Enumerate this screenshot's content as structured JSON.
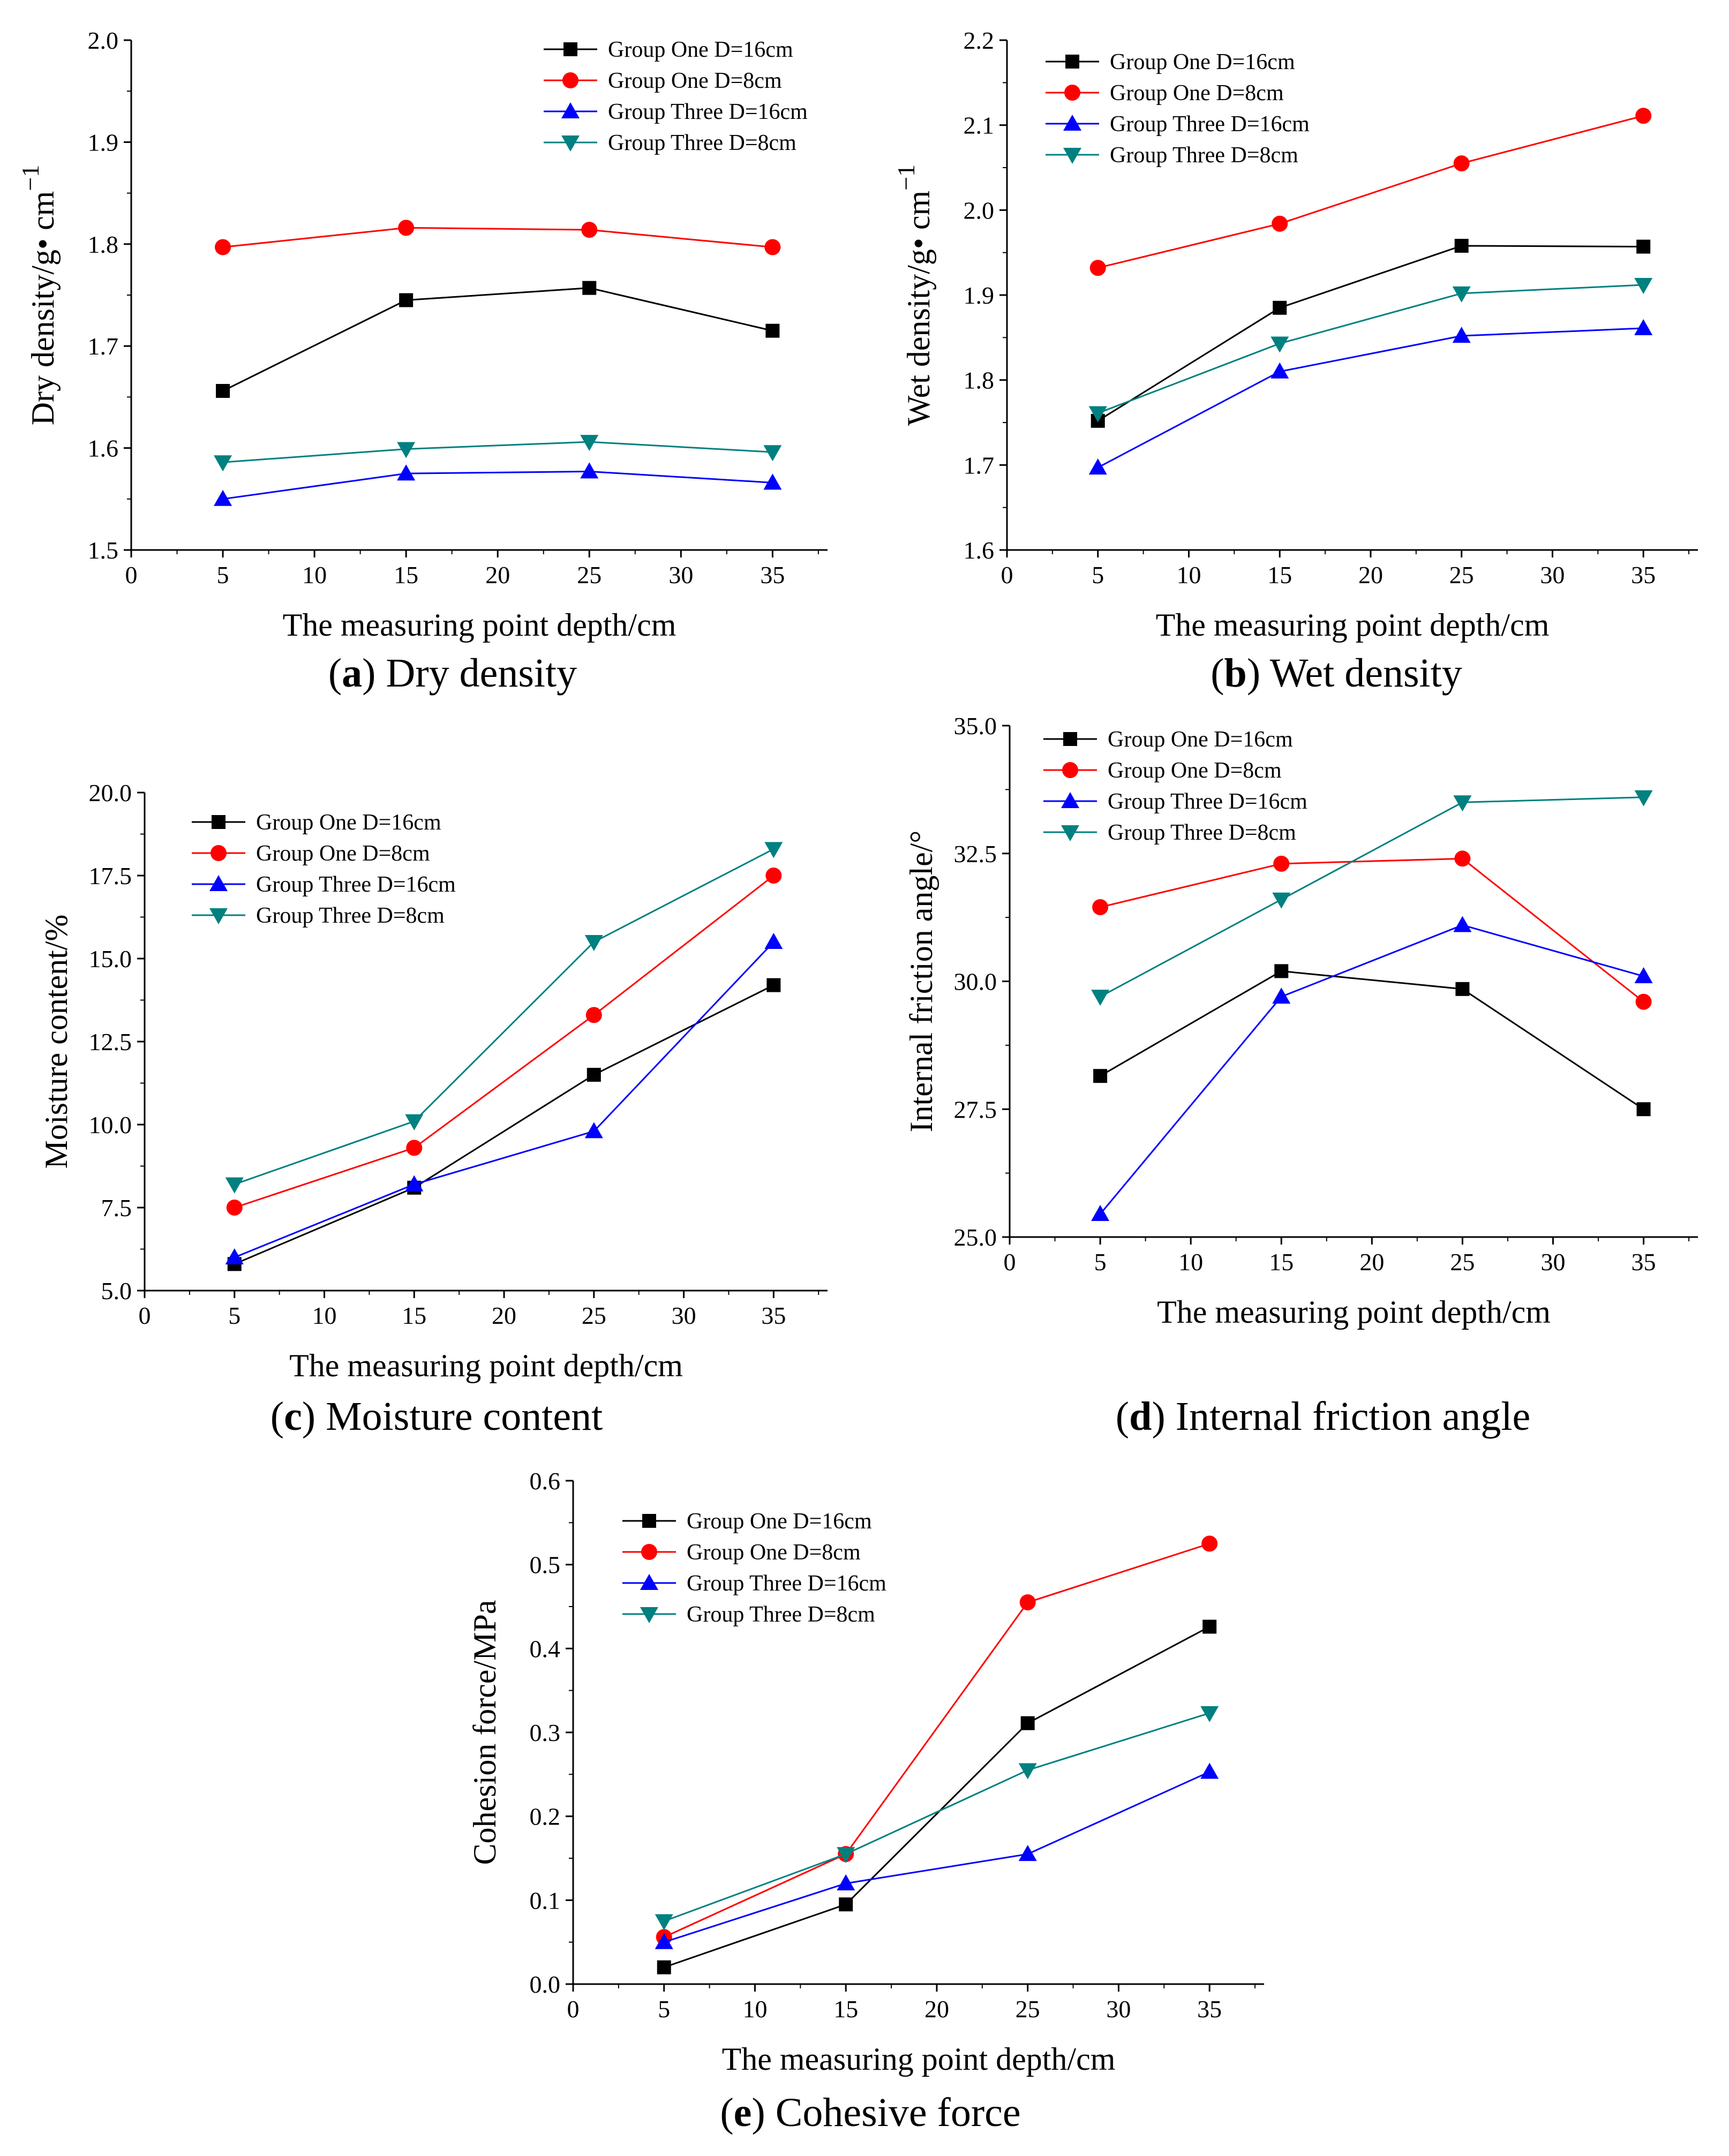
{
  "chart_data": [
    {
      "id": "a",
      "type": "line",
      "caption_letter": "a",
      "caption_text": " Dry density",
      "caption_open": "(",
      "caption_close": ")",
      "xlabel": "The measuring point depth/cm",
      "ylabel": "Dry density/g•  cm",
      "ylabel_sup": "−1",
      "xlim": [
        0,
        38
      ],
      "ylim": [
        1.5,
        2.0
      ],
      "xticks": [
        0,
        5,
        10,
        15,
        20,
        25,
        30,
        35
      ],
      "yticks": [
        1.5,
        1.6,
        1.7,
        1.8,
        1.9,
        2.0
      ],
      "ytick_labels": [
        "1.5",
        "1.6",
        "1.7",
        "1.8",
        "1.9",
        "2.0"
      ],
      "x": [
        5,
        15,
        25,
        35
      ],
      "series": [
        {
          "name": "Group One D=16cm",
          "values": [
            1.656,
            1.745,
            1.757,
            1.715
          ]
        },
        {
          "name": "Group One D=8cm",
          "values": [
            1.797,
            1.816,
            1.814,
            1.797
          ]
        },
        {
          "name": "Group Three D=16cm",
          "values": [
            1.55,
            1.575,
            1.577,
            1.566
          ]
        },
        {
          "name": "Group Three D=8cm",
          "values": [
            1.586,
            1.599,
            1.606,
            1.596
          ]
        }
      ]
    },
    {
      "id": "b",
      "type": "line",
      "caption_letter": "b",
      "caption_text": " Wet density",
      "caption_open": "(",
      "caption_close": ")",
      "xlabel": "The measuring point depth/cm",
      "ylabel": "Wet density/g•  cm",
      "ylabel_sup": "−1",
      "xlim": [
        0,
        38
      ],
      "ylim": [
        1.6,
        2.2
      ],
      "xticks": [
        0,
        5,
        10,
        15,
        20,
        25,
        30,
        35
      ],
      "yticks": [
        1.6,
        1.7,
        1.8,
        1.9,
        2.0,
        2.1,
        2.2
      ],
      "ytick_labels": [
        "1.6",
        "1.7",
        "1.8",
        "1.9",
        "2.0",
        "2.1",
        "2.2"
      ],
      "x": [
        5,
        15,
        25,
        35
      ],
      "series": [
        {
          "name": "Group One D=16cm",
          "values": [
            1.752,
            1.885,
            1.958,
            1.957
          ]
        },
        {
          "name": "Group One D=8cm",
          "values": [
            1.932,
            1.984,
            2.055,
            2.111
          ]
        },
        {
          "name": "Group Three D=16cm",
          "values": [
            1.697,
            1.81,
            1.852,
            1.861
          ]
        },
        {
          "name": "Group Three D=8cm",
          "values": [
            1.761,
            1.843,
            1.902,
            1.912
          ]
        }
      ]
    },
    {
      "id": "c",
      "type": "line",
      "caption_letter": "c",
      "caption_text": " Moisture content",
      "caption_open": "(",
      "caption_close": ")",
      "xlabel": "The measuring point depth/cm",
      "ylabel": "Moisture content/%",
      "ylabel_sup": "",
      "xlim": [
        0,
        38
      ],
      "ylim": [
        5.0,
        20.0
      ],
      "xticks": [
        0,
        5,
        10,
        15,
        20,
        25,
        30,
        35
      ],
      "yticks": [
        5.0,
        7.5,
        10.0,
        12.5,
        15.0,
        17.5,
        20.0
      ],
      "ytick_labels": [
        "5.0",
        "7.5",
        "10.0",
        "12.5",
        "15.0",
        "17.5",
        "20.0"
      ],
      "x": [
        5,
        15,
        25,
        35
      ],
      "series": [
        {
          "name": "Group One D=16cm",
          "values": [
            5.8,
            8.1,
            11.5,
            14.2
          ]
        },
        {
          "name": "Group One D=8cm",
          "values": [
            7.5,
            9.3,
            13.3,
            17.5
          ]
        },
        {
          "name": "Group Three D=16cm",
          "values": [
            6.0,
            8.2,
            9.8,
            15.5
          ]
        },
        {
          "name": "Group Three D=8cm",
          "values": [
            8.2,
            10.1,
            15.5,
            18.3
          ]
        }
      ]
    },
    {
      "id": "d",
      "type": "line",
      "caption_letter": "d",
      "caption_text": " Internal friction angle",
      "caption_open": "(",
      "caption_close": ")",
      "xlabel": "The measuring point depth/cm",
      "ylabel": "Internal friction angle/°",
      "ylabel_sup": "",
      "xlim": [
        0,
        38
      ],
      "ylim": [
        25.0,
        35.0
      ],
      "xticks": [
        0,
        5,
        10,
        15,
        20,
        25,
        30,
        35
      ],
      "yticks": [
        25.0,
        27.5,
        30.0,
        32.5,
        35.0
      ],
      "ytick_labels": [
        "25.0",
        "27.5",
        "30.0",
        "32.5",
        "35.0"
      ],
      "x": [
        5,
        15,
        25,
        35
      ],
      "series": [
        {
          "name": "Group One D=16cm",
          "values": [
            28.15,
            30.2,
            29.85,
            27.5
          ]
        },
        {
          "name": "Group One D=8cm",
          "values": [
            31.45,
            32.3,
            32.4,
            29.6
          ]
        },
        {
          "name": "Group Three D=16cm",
          "values": [
            25.45,
            29.7,
            31.1,
            30.1
          ]
        },
        {
          "name": "Group Three D=8cm",
          "values": [
            29.7,
            31.6,
            33.5,
            33.6
          ]
        }
      ]
    },
    {
      "id": "e",
      "type": "line",
      "caption_letter": "e",
      "caption_text": " Cohesive force",
      "caption_open": "(",
      "caption_close": ")",
      "xlabel": "The measuring point depth/cm",
      "ylabel": "Cohesion force/MPa",
      "ylabel_sup": "",
      "xlim": [
        0,
        38
      ],
      "ylim": [
        0.0,
        0.6
      ],
      "xticks": [
        0,
        5,
        10,
        15,
        20,
        25,
        30,
        35
      ],
      "yticks": [
        0.0,
        0.1,
        0.2,
        0.3,
        0.4,
        0.5,
        0.6
      ],
      "ytick_labels": [
        "0.0",
        "0.1",
        "0.2",
        "0.3",
        "0.4",
        "0.5",
        "0.6"
      ],
      "x": [
        5,
        15,
        25,
        35
      ],
      "series": [
        {
          "name": "Group One D=16cm",
          "values": [
            0.02,
            0.095,
            0.311,
            0.426
          ]
        },
        {
          "name": "Group One D=8cm",
          "values": [
            0.056,
            0.155,
            0.455,
            0.525
          ]
        },
        {
          "name": "Group Three D=16cm",
          "values": [
            0.05,
            0.12,
            0.155,
            0.253
          ]
        },
        {
          "name": "Group Three D=8cm",
          "values": [
            0.075,
            0.155,
            0.255,
            0.323
          ]
        }
      ]
    }
  ],
  "series_style": [
    {
      "color": "#000000",
      "marker": "square"
    },
    {
      "color": "#ff0000",
      "marker": "circle"
    },
    {
      "color": "#0000ff",
      "marker": "triangle-up"
    },
    {
      "color": "#008080",
      "marker": "triangle-down"
    }
  ]
}
